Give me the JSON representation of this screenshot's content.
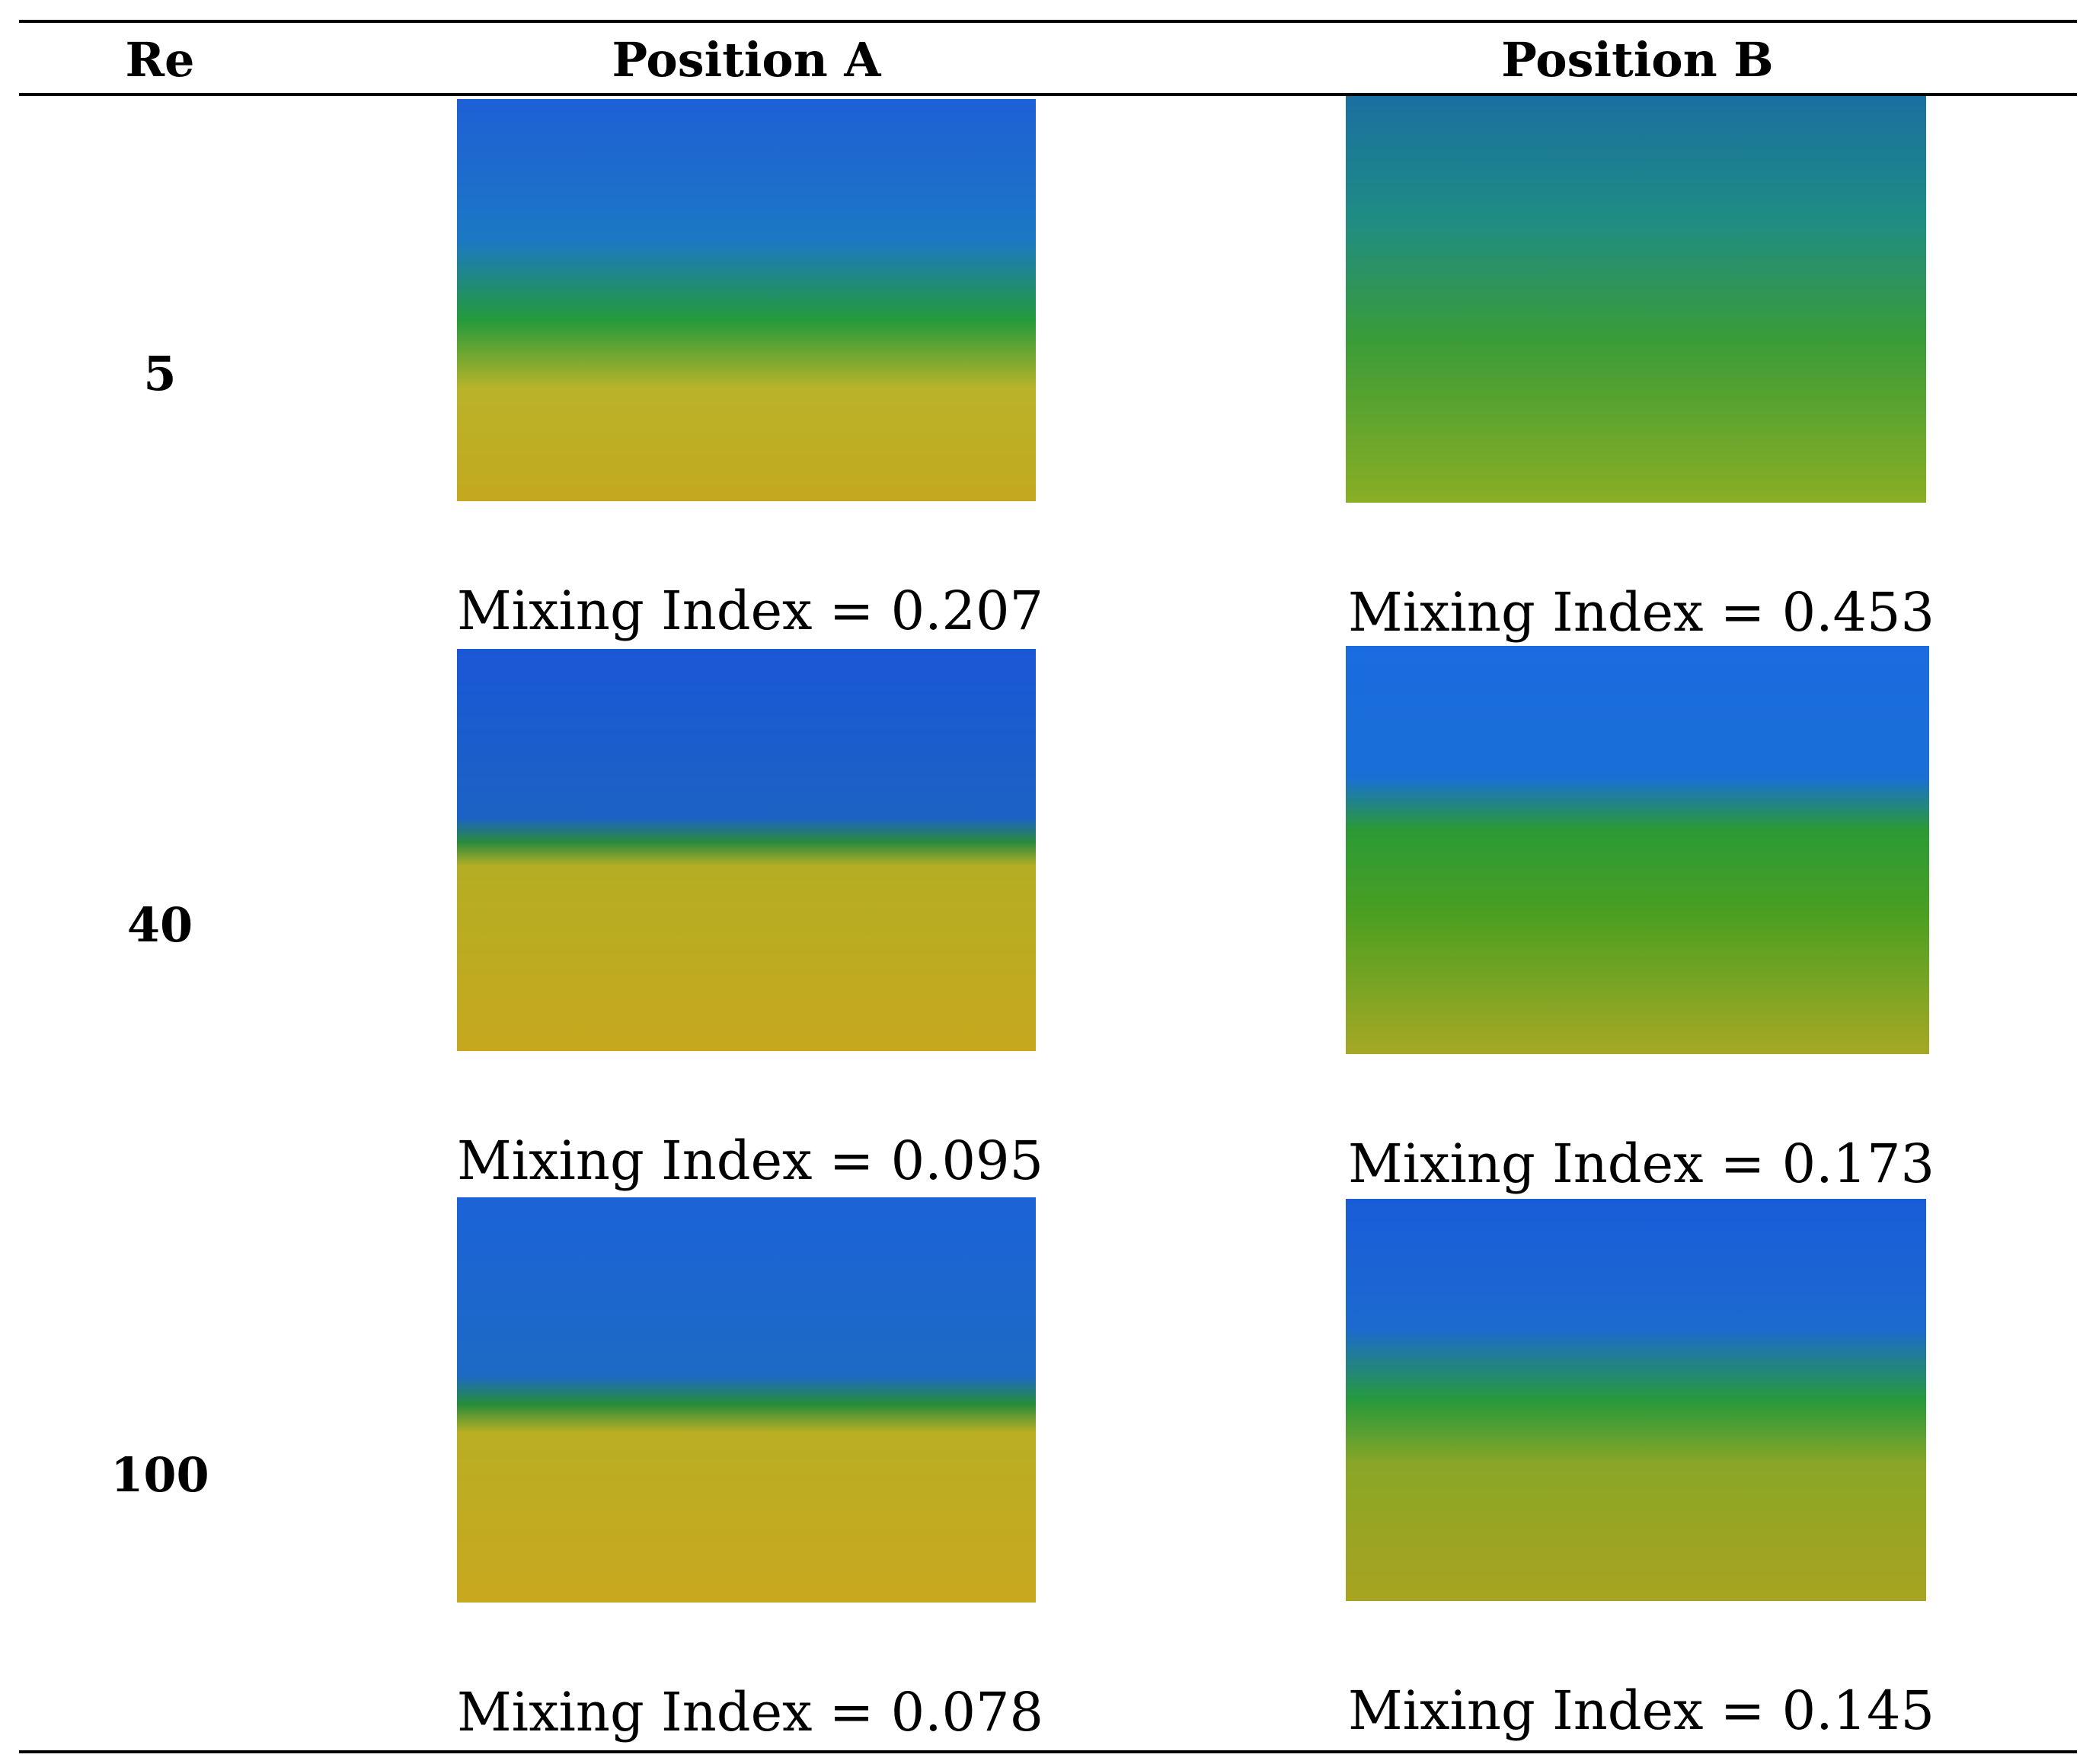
{
  "table": {
    "headers": {
      "re": "Re",
      "position_a": "Position A",
      "position_b": "Position B"
    },
    "rows": [
      {
        "re": "5",
        "a_caption": "Mixing Index = 0.207",
        "b_caption": "Mixing Index = 0.453",
        "a_mixing_index": 0.207,
        "b_mixing_index": 0.453
      },
      {
        "re": "40",
        "a_caption": "Mixing Index = 0.095",
        "b_caption": "Mixing Index = 0.173",
        "a_mixing_index": 0.095,
        "b_mixing_index": 0.173
      },
      {
        "re": "100",
        "a_caption": "Mixing Index = 0.078",
        "b_caption": "Mixing Index = 0.145",
        "a_mixing_index": 0.078,
        "b_mixing_index": 0.145
      }
    ]
  },
  "colors": {
    "blue": "#1f5ad8",
    "green": "#2e9a2a",
    "yellow": "#c8b21e",
    "rule": "#000000"
  }
}
